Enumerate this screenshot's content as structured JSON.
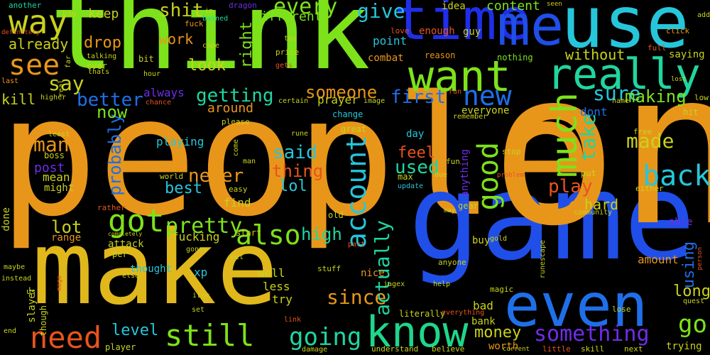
{
  "words": {
    "people": "people",
    "game": "game",
    "make": "make",
    "think": "think",
    "use": "use",
    "time": "time",
    "me": "me",
    "one": "one",
    "really": "really",
    "want": "want",
    "even": "even",
    "know": "know",
    "much": "much",
    "good": "good",
    "got": "got",
    "new": "new",
    "need": "need",
    "still": "still",
    "going": "going",
    "back": "back",
    "way": "way",
    "see": "see",
    "account": "account",
    "also": "also",
    "something": "something",
    "pretty": "pretty",
    "go": "go",
    "give": "give",
    "every": "every",
    "shit": "shit",
    "many": "many",
    "first": "first",
    "someone": "someone",
    "getting": "getting",
    "take": "take",
    "made": "made",
    "say": "say",
    "said": "said",
    "used": "used",
    "probably": "probably",
    "play": "play",
    "sure": "sure",
    "making": "making",
    "never": "never",
    "better": "better",
    "now": "now",
    "right": "right",
    "high": "high",
    "lot": "lot",
    "level": "level",
    "money": "money",
    "since": "since",
    "actually": "actually",
    "feel": "feel",
    "thing": "thing",
    "lol": "lol",
    "best": "best",
    "using": "using",
    "long": "long",
    "hard": "hard",
    "drop": "drop",
    "look": "look",
    "work": "work",
    "keep": "keep",
    "already": "already",
    "without": "without",
    "content": "content",
    "different": "different",
    "always": "always",
    "around": "around",
    "kill": "kill",
    "post": "post",
    "mean": "mean",
    "might": "might",
    "playing": "playing",
    "prayer": "prayer",
    "point": "point",
    "enough": "enough",
    "guy": "guy",
    "idea": "idea",
    "dont": "dont",
    "everyone": "everyone",
    "fucking": "fucking",
    "find": "find",
    "amount": "amount",
    "able": "able",
    "well": "well",
    "less": "less",
    "try": "try",
    "nice": "nice",
    "bad": "bad",
    "bank": "bank",
    "worth": "worth",
    "trying": "trying",
    "anything": "anything",
    "attack": "attack",
    "thought": "thought",
    "xp": "xp",
    "slayer": "slayer",
    "start": "start",
    "range": "range",
    "done": "done",
    "ever": "ever",
    "reason": "reason",
    "combat": "combat",
    "nothing": "nothing",
    "saying": "saying",
    "hit": "hit",
    "day": "day",
    "put": "put",
    "buy": "buy",
    "love": "love",
    "full": "full",
    "another": "another",
    "big": "big",
    "fuck": "fuck",
    "banned": "banned",
    "dragon": "dragon",
    "im": "im",
    "seen": "seen",
    "add": "add",
    "definitely": "definitely",
    "far": "far",
    "real": "real",
    "talking": "talking",
    "thats": "thats",
    "cape": "cape",
    "two": "two",
    "price": "price",
    "gets": "gets",
    "bit": "bit",
    "hour": "hour",
    "click": "click",
    "last": "last",
    "higher": "higher",
    "chance": "chance",
    "certain": "certain",
    "image": "image",
    "run": "run",
    "lost": "lost",
    "low": "low",
    "name": "name",
    "change": "change",
    "remember": "remember",
    "least": "least",
    "please": "please",
    "great": "great",
    "rune": "rune",
    "free": "free",
    "either": "either",
    "boss": "boss",
    "come": "come",
    "man": "man",
    "fun": "fun",
    "stop": "stop",
    "world": "world",
    "due": "due",
    "max": "max",
    "update": "update",
    "problem": "problem",
    "easy": "easy",
    "rather": "rather",
    "old": "old",
    "gear": "gear",
    "community": "community",
    "may": "may",
    "completely": "completely",
    "part": "part",
    "per": "per",
    "gonna": "gonna",
    "gold": "gold",
    "pet": "pet",
    "else": "else",
    "anyone": "anyone",
    "runescape": "runescape",
    "person": "person",
    "maybe": "maybe",
    "instead": "instead",
    "mage": "mage",
    "us": "us",
    "stuff": "stuff",
    "jagex": "jagex",
    "help": "help",
    "magic": "magic",
    "item": "item",
    "quest": "quest",
    "lose": "lose",
    "though": "though",
    "end": "end",
    "set": "set",
    "link": "link",
    "literally": "literally",
    "everything": "everything",
    "player": "player",
    "damage": "damage",
    "understand": "understand",
    "believe": "believe",
    "current": "current",
    "little": "little",
    "skill": "skill",
    "next": "next"
  },
  "colors": {
    "orange": "#e8961a",
    "green": "#7de21a",
    "cyan": "#26c6da",
    "blue": "#1f4fe8",
    "yellow": "#c9d21c",
    "red": "#e8541d",
    "teal": "#1fd6a0",
    "purple": "#6e2ee8"
  }
}
